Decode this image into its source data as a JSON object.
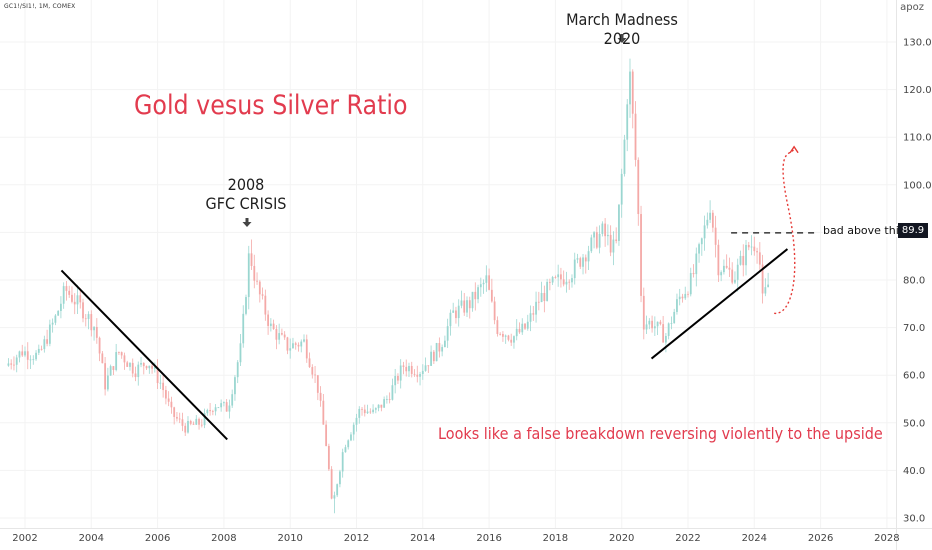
{
  "header": {
    "symbol": "GC1!/SI1!, 1M, COMEX",
    "currency": "apoz"
  },
  "title": "Gold vesus Silver Ratio",
  "annotations": {
    "gfc_year": "2008",
    "gfc_label": "GFC CRISIS",
    "march": "March Madness 2020",
    "false_breakdown": "Looks like a false breakdown reversing violently to the upside",
    "bad_above": "bad above this",
    "price_badge": "89.9"
  },
  "colors": {
    "up": "#26a69a",
    "down": "#ef5350",
    "annotation_red": "#e23b4e",
    "badge_bg": "#131722"
  },
  "chart_data": {
    "type": "candlestick",
    "title": "Gold vesus Silver Ratio",
    "frequency": "1M",
    "x_range": [
      2001.4,
      2028.3
    ],
    "y_range": [
      29,
      136
    ],
    "x_ticks": [
      "2002",
      "2004",
      "2006",
      "2008",
      "2010",
      "2012",
      "2014",
      "2016",
      "2018",
      "2020",
      "2022",
      "2024",
      "2026",
      "2028"
    ],
    "y_ticks": [
      "30.0",
      "40.0",
      "50.0",
      "60.0",
      "70.0",
      "80.0",
      "90.0",
      "100.0",
      "110.0",
      "120.0",
      "130.0"
    ],
    "series_anchor_points": [
      [
        2001.5,
        62
      ],
      [
        2002.0,
        65
      ],
      [
        2002.5,
        64
      ],
      [
        2003.0,
        72
      ],
      [
        2003.3,
        78
      ],
      [
        2003.8,
        74
      ],
      [
        2004.2,
        70
      ],
      [
        2004.5,
        58
      ],
      [
        2004.9,
        65
      ],
      [
        2005.4,
        61
      ],
      [
        2005.8,
        63
      ],
      [
        2006.2,
        58
      ],
      [
        2006.5,
        52
      ],
      [
        2006.9,
        49
      ],
      [
        2007.4,
        50
      ],
      [
        2007.8,
        54
      ],
      [
        2008.2,
        53
      ],
      [
        2008.6,
        66
      ],
      [
        2008.85,
        86
      ],
      [
        2009.1,
        78
      ],
      [
        2009.5,
        70
      ],
      [
        2010.0,
        66
      ],
      [
        2010.5,
        67
      ],
      [
        2010.9,
        58
      ],
      [
        2011.2,
        44
      ],
      [
        2011.35,
        32
      ],
      [
        2011.7,
        45
      ],
      [
        2012.2,
        53
      ],
      [
        2012.6,
        52
      ],
      [
        2013.0,
        55
      ],
      [
        2013.5,
        62
      ],
      [
        2014.0,
        61
      ],
      [
        2014.6,
        66
      ],
      [
        2015.0,
        73
      ],
      [
        2015.5,
        75
      ],
      [
        2016.0,
        80
      ],
      [
        2016.3,
        70
      ],
      [
        2016.8,
        68
      ],
      [
        2017.2,
        70
      ],
      [
        2017.6,
        76
      ],
      [
        2018.0,
        79
      ],
      [
        2018.6,
        82
      ],
      [
        2019.0,
        86
      ],
      [
        2019.5,
        90
      ],
      [
        2019.9,
        86
      ],
      [
        2020.2,
        112
      ],
      [
        2020.3,
        126
      ],
      [
        2020.55,
        100
      ],
      [
        2020.7,
        71
      ],
      [
        2021.0,
        71
      ],
      [
        2021.4,
        68
      ],
      [
        2021.8,
        76
      ],
      [
        2022.2,
        80
      ],
      [
        2022.5,
        88
      ],
      [
        2022.75,
        96
      ],
      [
        2023.0,
        83
      ],
      [
        2023.5,
        81
      ],
      [
        2023.9,
        87
      ],
      [
        2024.2,
        88
      ],
      [
        2024.35,
        74
      ],
      [
        2024.45,
        79
      ]
    ],
    "trendlines": [
      {
        "from": [
          2003.1,
          82
        ],
        "to": [
          2008.1,
          46.5
        ]
      },
      {
        "from": [
          2020.9,
          63.5
        ],
        "to": [
          2025.0,
          86.5
        ]
      }
    ],
    "horizontal_level": {
      "value": 89.9,
      "from": 2023.3,
      "to": 2025.2,
      "label": "bad above this"
    },
    "projection_arrow": {
      "from": [
        2024.6,
        73
      ],
      "peak": [
        2025.2,
        108
      ]
    },
    "marked_events": [
      {
        "label": "2008 GFC CRISIS",
        "x": 2008.75
      },
      {
        "label": "March Madness 2020",
        "x": 2020.1
      }
    ]
  }
}
